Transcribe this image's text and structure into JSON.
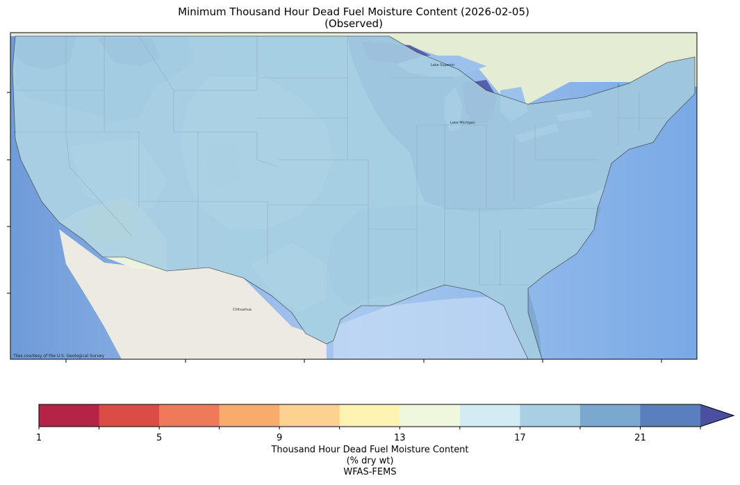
{
  "title": "Minimum Thousand Hour Dead Fuel Moisture Content (2026-02-05)",
  "subtitle": "(Observed)",
  "attribution": "Tiles courtesy of the U.S. Geological Survey",
  "map_labels": {
    "lake_michigan": "Lake Michigan",
    "lake_superior": "Lake Superior",
    "chihuahua": "Chihuahua"
  },
  "colorbar": {
    "label_line1": "Thousand Hour Dead Fuel Moisture Content",
    "label_line2": "(% dry wt)",
    "label_line3": "WFAS-FEMS",
    "ticks": [
      "1",
      "5",
      "9",
      "13",
      "17",
      "21"
    ],
    "min": 1,
    "max": 23,
    "extend": "max",
    "colors": [
      "#b52447",
      "#dc4b45",
      "#ef7a5a",
      "#f9ab6c",
      "#fdd18f",
      "#fff3b2",
      "#eff7dd",
      "#d3ebf2",
      "#a8cfe3",
      "#7ba8cf",
      "#5a7fbe",
      "#4a4fa0"
    ]
  },
  "legend_placement": "bottom"
}
